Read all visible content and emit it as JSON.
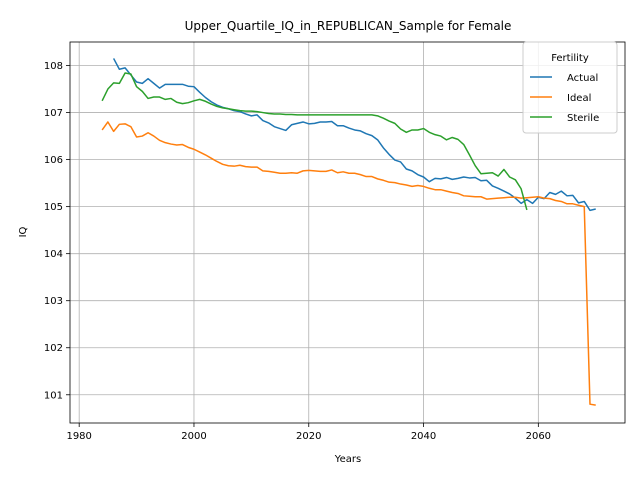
{
  "chart_data": {
    "type": "line",
    "title": "Upper_Quartile_IQ_in_REPUBLICAN_Sample for Female",
    "xlabel": "Years",
    "ylabel": "IQ",
    "xlim": [
      1978.4,
      2075.1
    ],
    "ylim": [
      100.4,
      108.5
    ],
    "xticks": [
      1980,
      2000,
      2020,
      2040,
      2060
    ],
    "yticks": [
      101,
      102,
      103,
      104,
      105,
      106,
      107,
      108
    ],
    "grid": true,
    "legend": {
      "title": "Fertility",
      "placement": "upper right"
    },
    "series": [
      {
        "name": "Actual",
        "color": "#1f77b4",
        "x": [
          1986,
          1987,
          1988,
          1989,
          1990,
          1991,
          1992,
          1993,
          1994,
          1995,
          1996,
          1997,
          1998,
          1999,
          2000,
          2001,
          2002,
          2003,
          2004,
          2005,
          2006,
          2007,
          2008,
          2009,
          2010,
          2011,
          2012,
          2013,
          2014,
          2015,
          2016,
          2017,
          2018,
          2019,
          2020,
          2021,
          2022,
          2023,
          2024,
          2025,
          2026,
          2027,
          2028,
          2029,
          2030,
          2031,
          2032,
          2033,
          2034,
          2035,
          2036,
          2037,
          2038,
          2039,
          2040,
          2041,
          2042,
          2043,
          2044,
          2045,
          2046,
          2047,
          2048,
          2049,
          2050,
          2051,
          2052,
          2053,
          2054,
          2055,
          2056,
          2057,
          2058,
          2059,
          2060,
          2061,
          2062,
          2063,
          2064,
          2065,
          2066,
          2067,
          2068,
          2069,
          2070
        ],
        "values": [
          108.15,
          107.92,
          107.95,
          107.8,
          107.65,
          107.62,
          107.72,
          107.62,
          107.52,
          107.6,
          107.6,
          107.6,
          107.6,
          107.56,
          107.55,
          107.43,
          107.32,
          107.23,
          107.16,
          107.11,
          107.08,
          107.04,
          107.02,
          106.97,
          106.93,
          106.95,
          106.83,
          106.78,
          106.7,
          106.66,
          106.62,
          106.74,
          106.77,
          106.8,
          106.76,
          106.77,
          106.8,
          106.8,
          106.81,
          106.72,
          106.72,
          106.67,
          106.63,
          106.61,
          106.55,
          106.51,
          106.42,
          106.25,
          106.11,
          105.99,
          105.95,
          105.8,
          105.76,
          105.68,
          105.63,
          105.53,
          105.6,
          105.59,
          105.62,
          105.58,
          105.6,
          105.63,
          105.61,
          105.62,
          105.55,
          105.56,
          105.44,
          105.39,
          105.33,
          105.27,
          105.18,
          105.07,
          105.15,
          105.07,
          105.2,
          105.17,
          105.3,
          105.26,
          105.33,
          105.23,
          105.24,
          105.08,
          105.11,
          104.92,
          104.95
        ]
      },
      {
        "name": "Ideal",
        "color": "#ff7f0e",
        "x": [
          1984,
          1985,
          1986,
          1987,
          1988,
          1989,
          1990,
          1991,
          1992,
          1993,
          1994,
          1995,
          1996,
          1997,
          1998,
          1999,
          2000,
          2001,
          2002,
          2003,
          2004,
          2005,
          2006,
          2007,
          2008,
          2009,
          2010,
          2011,
          2012,
          2013,
          2014,
          2015,
          2016,
          2017,
          2018,
          2019,
          2020,
          2021,
          2022,
          2023,
          2024,
          2025,
          2026,
          2027,
          2028,
          2029,
          2030,
          2031,
          2032,
          2033,
          2034,
          2035,
          2036,
          2037,
          2038,
          2039,
          2040,
          2041,
          2042,
          2043,
          2044,
          2045,
          2046,
          2047,
          2048,
          2049,
          2050,
          2051,
          2052,
          2053,
          2054,
          2055,
          2056,
          2057,
          2058,
          2059,
          2060,
          2061,
          2062,
          2063,
          2064,
          2065,
          2066,
          2067,
          2068,
          2069,
          2070
        ],
        "values": [
          106.63,
          106.8,
          106.6,
          106.75,
          106.76,
          106.7,
          106.48,
          106.5,
          106.57,
          106.5,
          106.41,
          106.36,
          106.33,
          106.31,
          106.32,
          106.26,
          106.22,
          106.16,
          106.1,
          106.03,
          105.96,
          105.9,
          105.87,
          105.86,
          105.88,
          105.85,
          105.84,
          105.84,
          105.76,
          105.75,
          105.73,
          105.71,
          105.71,
          105.72,
          105.71,
          105.76,
          105.77,
          105.76,
          105.75,
          105.75,
          105.78,
          105.72,
          105.74,
          105.71,
          105.71,
          105.68,
          105.64,
          105.64,
          105.59,
          105.56,
          105.52,
          105.51,
          105.48,
          105.46,
          105.43,
          105.45,
          105.43,
          105.39,
          105.36,
          105.36,
          105.33,
          105.3,
          105.28,
          105.23,
          105.22,
          105.21,
          105.21,
          105.16,
          105.17,
          105.18,
          105.19,
          105.2,
          105.2,
          105.18,
          105.19,
          105.2,
          105.21,
          105.18,
          105.17,
          105.13,
          105.11,
          105.06,
          105.06,
          105.03,
          105.0,
          100.8,
          100.78
        ]
      },
      {
        "name": "Sterile",
        "color": "#2ca02c",
        "x": [
          1984,
          1985,
          1986,
          1987,
          1988,
          1989,
          1990,
          1991,
          1992,
          1993,
          1994,
          1995,
          1996,
          1997,
          1998,
          1999,
          2000,
          2001,
          2002,
          2003,
          2004,
          2005,
          2006,
          2007,
          2008,
          2009,
          2010,
          2011,
          2012,
          2013,
          2014,
          2015,
          2016,
          2017,
          2018,
          2019,
          2020,
          2021,
          2022,
          2023,
          2024,
          2025,
          2026,
          2027,
          2028,
          2029,
          2030,
          2031,
          2032,
          2033,
          2034,
          2035,
          2036,
          2037,
          2038,
          2039,
          2040,
          2041,
          2042,
          2043,
          2044,
          2045,
          2046,
          2047,
          2048,
          2049,
          2050,
          2051,
          2052,
          2053,
          2054,
          2055,
          2056,
          2057,
          2058
        ],
        "values": [
          107.25,
          107.5,
          107.63,
          107.62,
          107.84,
          107.82,
          107.55,
          107.45,
          107.3,
          107.33,
          107.33,
          107.28,
          107.3,
          107.22,
          107.19,
          107.21,
          107.25,
          107.28,
          107.24,
          107.18,
          107.13,
          107.1,
          107.08,
          107.06,
          107.04,
          107.03,
          107.03,
          107.02,
          107.0,
          106.98,
          106.97,
          106.97,
          106.96,
          106.96,
          106.95,
          106.95,
          106.95,
          106.95,
          106.95,
          106.95,
          106.95,
          106.95,
          106.95,
          106.95,
          106.95,
          106.95,
          106.95,
          106.95,
          106.93,
          106.88,
          106.82,
          106.77,
          106.65,
          106.58,
          106.63,
          106.63,
          106.66,
          106.58,
          106.53,
          106.5,
          106.42,
          106.47,
          106.43,
          106.32,
          106.1,
          105.87,
          105.7,
          105.71,
          105.72,
          105.65,
          105.79,
          105.63,
          105.57,
          105.38,
          104.93
        ]
      }
    ]
  }
}
